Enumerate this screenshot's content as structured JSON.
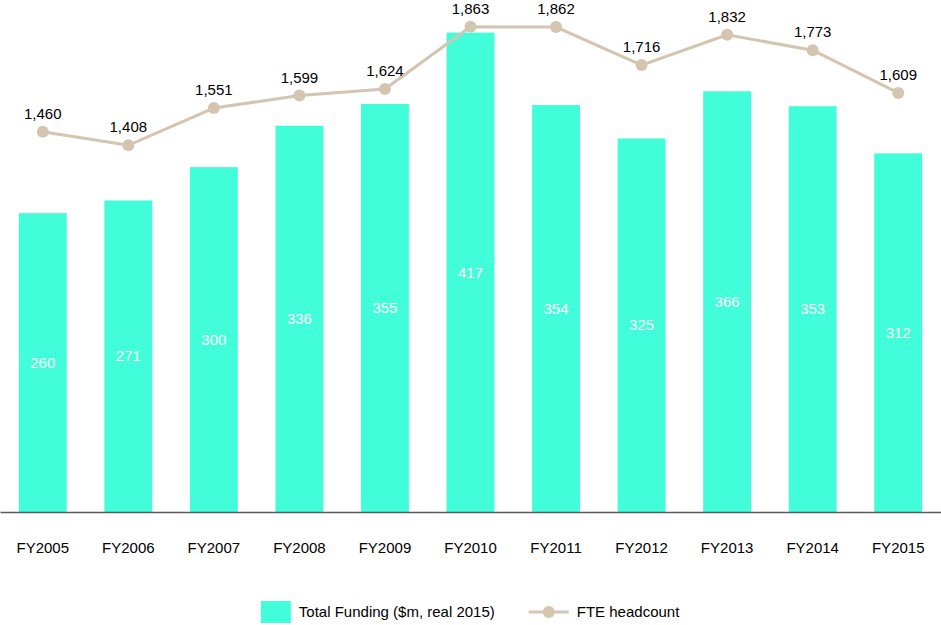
{
  "chart_data": {
    "type": "bar",
    "categories": [
      "FY2005",
      "FY2006",
      "FY2007",
      "FY2008",
      "FY2009",
      "FY2010",
      "FY2011",
      "FY2012",
      "FY2013",
      "FY2014",
      "FY2015"
    ],
    "series": [
      {
        "name": "Total Funding ($m, real 2015)",
        "type": "bar",
        "color": "#42fdd9",
        "values": [
          260,
          271,
          300,
          336,
          355,
          417,
          354,
          325,
          366,
          353,
          312
        ]
      },
      {
        "name": "FTE headcount",
        "type": "line",
        "axis": "y2",
        "color": "#d4c5b1",
        "marker": "circle",
        "values": [
          1460,
          1408,
          1551,
          1599,
          1624,
          1863,
          1862,
          1716,
          1832,
          1773,
          1609
        ],
        "value_labels": [
          "1,460",
          "1,408",
          "1,551",
          "1,599",
          "1,624",
          "1,863",
          "1,862",
          "1,716",
          "1,832",
          "1,773",
          "1,609"
        ]
      }
    ],
    "ylim": [
      0,
      428
    ],
    "y2lim": [
      0,
      1889
    ],
    "data_labels": true,
    "tick_labels": "x",
    "legend": "bottom"
  }
}
